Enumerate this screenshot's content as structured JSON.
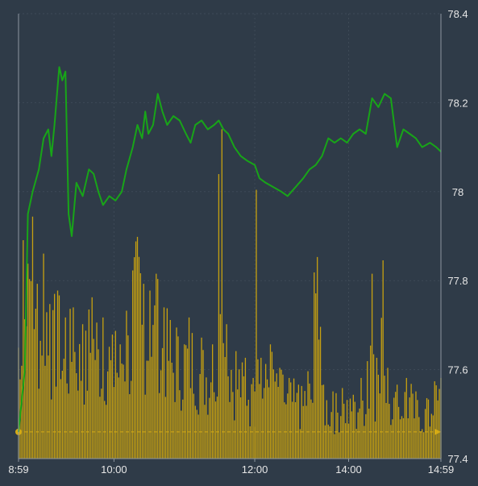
{
  "colors": {
    "background": "#2f3b48",
    "plot_background": "#2f3b48",
    "grid": "#3e4a57",
    "axis": "#8c96a0",
    "tick_text": "#e6e6e6",
    "price_line": "#18a518",
    "volume_bar": "#c7a110",
    "volume_bar_edge": "#8d7409",
    "marker": "#d6ab14"
  },
  "chart_data": {
    "type": "line",
    "title": "",
    "xlabel": "",
    "ylabel": "",
    "x_tick_labels": [
      "8:59",
      "10:00",
      "12:00",
      "14:00",
      "14:59"
    ],
    "x_tick_times": [
      "8:59",
      "10:00",
      "12:00",
      "14:00",
      "14:59"
    ],
    "y_tick_labels": [
      "78.4",
      "78.2",
      "78",
      "77.8",
      "77.6",
      "77.4"
    ],
    "ylim": [
      77.4,
      78.4
    ],
    "grid": true,
    "y_axis_position": "right",
    "sessions": [
      [
        "8:59",
        "11:30"
      ],
      [
        "13:00",
        "14:59"
      ]
    ],
    "reference_line": {
      "style": "dashed",
      "level_fraction": 0.06,
      "start_marker": "dot",
      "end_marker": "arrow"
    },
    "series": [
      {
        "kind": "price_line",
        "points": [
          [
            "8:59",
            77.46
          ],
          [
            "9:03",
            77.6
          ],
          [
            "9:05",
            77.95
          ],
          [
            "9:08",
            78.0
          ],
          [
            "9:12",
            78.05
          ],
          [
            "9:15",
            78.12
          ],
          [
            "9:18",
            78.14
          ],
          [
            "9:20",
            78.08
          ],
          [
            "9:22",
            78.15
          ],
          [
            "9:25",
            78.28
          ],
          [
            "9:27",
            78.25
          ],
          [
            "9:29",
            78.27
          ],
          [
            "9:31",
            77.95
          ],
          [
            "9:33",
            77.9
          ],
          [
            "9:36",
            78.02
          ],
          [
            "9:40",
            77.99
          ],
          [
            "9:44",
            78.05
          ],
          [
            "9:47",
            78.04
          ],
          [
            "9:50",
            78.0
          ],
          [
            "9:53",
            77.97
          ],
          [
            "9:57",
            77.99
          ],
          [
            "10:01",
            77.98
          ],
          [
            "10:05",
            78.0
          ],
          [
            "10:08",
            78.05
          ],
          [
            "10:12",
            78.1
          ],
          [
            "10:15",
            78.15
          ],
          [
            "10:18",
            78.12
          ],
          [
            "10:20",
            78.18
          ],
          [
            "10:22",
            78.13
          ],
          [
            "10:25",
            78.15
          ],
          [
            "10:28",
            78.22
          ],
          [
            "10:31",
            78.18
          ],
          [
            "10:34",
            78.15
          ],
          [
            "10:38",
            78.17
          ],
          [
            "10:42",
            78.16
          ],
          [
            "10:46",
            78.13
          ],
          [
            "10:49",
            78.11
          ],
          [
            "10:52",
            78.15
          ],
          [
            "10:56",
            78.16
          ],
          [
            "11:00",
            78.14
          ],
          [
            "11:04",
            78.15
          ],
          [
            "11:07",
            78.16
          ],
          [
            "11:10",
            78.14
          ],
          [
            "11:13",
            78.13
          ],
          [
            "11:17",
            78.1
          ],
          [
            "11:21",
            78.08
          ],
          [
            "11:25",
            78.07
          ],
          [
            "11:30",
            78.06
          ],
          [
            "13:00",
            78.06
          ],
          [
            "13:03",
            78.03
          ],
          [
            "13:07",
            78.02
          ],
          [
            "13:12",
            78.01
          ],
          [
            "13:17",
            78.0
          ],
          [
            "13:21",
            77.99
          ],
          [
            "13:26",
            78.01
          ],
          [
            "13:31",
            78.03
          ],
          [
            "13:35",
            78.05
          ],
          [
            "13:39",
            78.06
          ],
          [
            "13:43",
            78.08
          ],
          [
            "13:47",
            78.12
          ],
          [
            "13:51",
            78.11
          ],
          [
            "13:55",
            78.12
          ],
          [
            "13:59",
            78.11
          ],
          [
            "14:03",
            78.13
          ],
          [
            "14:07",
            78.14
          ],
          [
            "14:11",
            78.13
          ],
          [
            "14:15",
            78.21
          ],
          [
            "14:19",
            78.19
          ],
          [
            "14:23",
            78.22
          ],
          [
            "14:27",
            78.21
          ],
          [
            "14:31",
            78.1
          ],
          [
            "14:35",
            78.14
          ],
          [
            "14:39",
            78.13
          ],
          [
            "14:43",
            78.12
          ],
          [
            "14:47",
            78.1
          ],
          [
            "14:52",
            78.11
          ],
          [
            "14:56",
            78.1
          ],
          [
            "14:59",
            78.09
          ]
        ]
      },
      {
        "kind": "volume_bars",
        "note_scale": "relative, 0-1 of volume panel height",
        "peaks": [
          [
            "8:59",
            0.33
          ],
          [
            "9:02",
            0.65
          ],
          [
            "9:05",
            0.58
          ],
          [
            "9:08",
            0.72
          ],
          [
            "9:11",
            0.52
          ],
          [
            "9:15",
            0.61
          ],
          [
            "9:19",
            0.46
          ],
          [
            "9:24",
            0.5
          ],
          [
            "9:29",
            0.42
          ],
          [
            "9:34",
            0.45
          ],
          [
            "9:40",
            0.4
          ],
          [
            "9:46",
            0.48
          ],
          [
            "9:53",
            0.42
          ],
          [
            "10:01",
            0.38
          ],
          [
            "10:08",
            0.44
          ],
          [
            "10:15",
            0.66
          ],
          [
            "10:19",
            0.52
          ],
          [
            "10:23",
            0.5
          ],
          [
            "10:27",
            0.55
          ],
          [
            "10:32",
            0.45
          ],
          [
            "10:40",
            0.39
          ],
          [
            "10:48",
            0.42
          ],
          [
            "10:56",
            0.36
          ],
          [
            "11:03",
            0.34
          ],
          [
            "11:09",
            0.98
          ],
          [
            "11:12",
            0.4
          ],
          [
            "11:18",
            0.32
          ],
          [
            "11:24",
            0.3
          ],
          [
            "11:29",
            0.24
          ],
          [
            "13:00",
            0.2
          ],
          [
            "13:01",
            0.8
          ],
          [
            "13:04",
            0.3
          ],
          [
            "13:10",
            0.34
          ],
          [
            "13:16",
            0.27
          ],
          [
            "13:22",
            0.24
          ],
          [
            "13:28",
            0.22
          ],
          [
            "13:34",
            0.26
          ],
          [
            "13:40",
            0.6
          ],
          [
            "13:44",
            0.22
          ],
          [
            "13:50",
            0.2
          ],
          [
            "13:56",
            0.21
          ],
          [
            "14:03",
            0.19
          ],
          [
            "14:08",
            0.24
          ],
          [
            "14:12",
            0.29
          ],
          [
            "14:15",
            0.55
          ],
          [
            "14:18",
            0.3
          ],
          [
            "14:22",
            0.59
          ],
          [
            "14:25",
            0.27
          ],
          [
            "14:31",
            0.22
          ],
          [
            "14:37",
            0.24
          ],
          [
            "14:43",
            0.2
          ],
          [
            "14:50",
            0.18
          ],
          [
            "14:55",
            0.23
          ],
          [
            "14:59",
            0.24
          ]
        ]
      }
    ]
  }
}
